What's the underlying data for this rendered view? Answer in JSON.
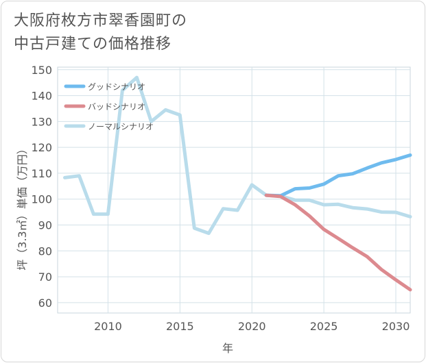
{
  "title": {
    "line1": "大阪府枚方市翠香園町の",
    "line2": "中古戸建ての価格推移"
  },
  "chart_data": {
    "type": "line",
    "xlabel": "年",
    "ylabel": "坪（3.3㎡）単価（万円）",
    "xlim": [
      2006.5,
      2031
    ],
    "ylim": [
      56,
      151
    ],
    "x_ticks": [
      2010,
      2015,
      2020,
      2025,
      2030
    ],
    "y_ticks": [
      60,
      70,
      80,
      90,
      100,
      110,
      120,
      130,
      140,
      150
    ],
    "grid": true,
    "legend_position": "top-left",
    "series": [
      {
        "name": "グッドシナリオ",
        "color": "#6fbbee",
        "x": [
          2021,
          2022,
          2023,
          2024,
          2025,
          2026,
          2027,
          2028,
          2029,
          2030,
          2031
        ],
        "values": [
          101.5,
          101.3,
          104.0,
          104.3,
          105.8,
          109.0,
          109.8,
          112.0,
          114.0,
          115.3,
          117.0
        ]
      },
      {
        "name": "バッドシナリオ",
        "color": "#dc8a8f",
        "x": [
          2021,
          2022,
          2023,
          2024,
          2025,
          2026,
          2027,
          2028,
          2029,
          2030,
          2031
        ],
        "values": [
          101.5,
          101.0,
          97.8,
          93.5,
          88.3,
          84.8,
          81.2,
          77.8,
          72.8,
          68.8,
          65.0
        ]
      },
      {
        "name": "ノーマルシナリオ",
        "color": "#b9dceb",
        "x": [
          2007,
          2008,
          2009,
          2010,
          2011,
          2012,
          2013,
          2014,
          2015,
          2016,
          2017,
          2018,
          2019,
          2020,
          2021,
          2022,
          2023,
          2024,
          2025,
          2026,
          2027,
          2028,
          2029,
          2030,
          2031
        ],
        "values": [
          108.3,
          109.0,
          94.2,
          94.2,
          142.0,
          147.0,
          130.0,
          134.5,
          132.5,
          88.8,
          86.8,
          96.3,
          95.7,
          105.5,
          101.5,
          101.2,
          99.6,
          99.6,
          97.8,
          98.0,
          96.7,
          96.2,
          95.0,
          94.9,
          93.2
        ]
      }
    ]
  }
}
